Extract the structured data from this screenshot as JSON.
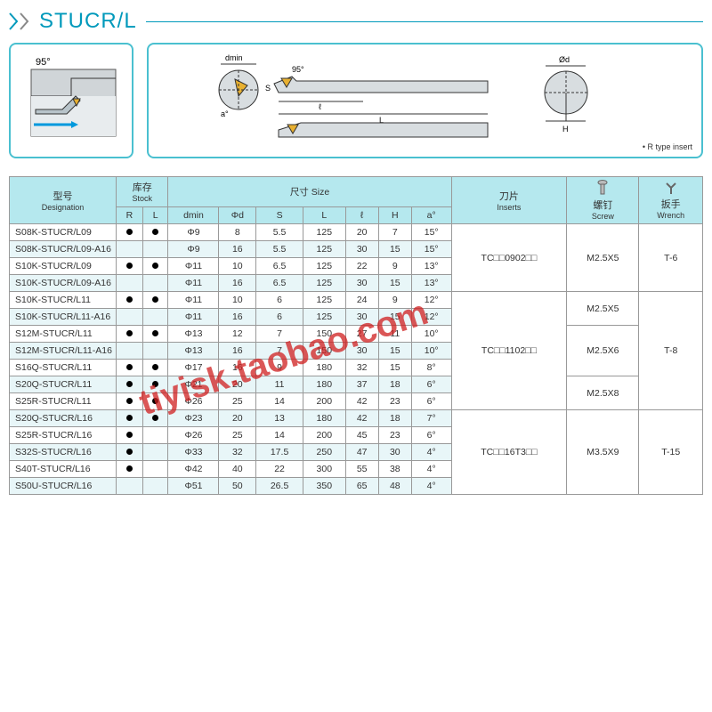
{
  "title": "STUCR/L",
  "note": "• R type insert",
  "angle_label": "95°",
  "diag_labels": {
    "dmin": "dmin",
    "phid": "Ød",
    "H": "H",
    "S": "S",
    "l": "ℓ",
    "L": "L",
    "a": "a°",
    "angle2": "95°"
  },
  "headers": {
    "designation_zh": "型号",
    "designation_en": "Designation",
    "stock_zh": "库存",
    "stock_en": "Stock",
    "R": "R",
    "L": "L",
    "size_zh": "尺寸",
    "size_en": "Size",
    "dmin": "dmin",
    "phid": "Φd",
    "S": "S",
    "Lcol": "L",
    "l": "ℓ",
    "H": "H",
    "a": "a°",
    "inserts_zh": "刀片",
    "inserts_en": "Inserts",
    "screw_zh": "螺钉",
    "screw_en": "Screw",
    "wrench_zh": "扳手",
    "wrench_en": "Wrench"
  },
  "rows": [
    {
      "d": "S08K-STUCR/L09",
      "r": true,
      "l": true,
      "dmin": "Φ9",
      "phid": "8",
      "s": "5.5",
      "L": "125",
      "ll": "20",
      "h": "7",
      "a": "15°"
    },
    {
      "d": "S08K-STUCR/L09-A16",
      "r": false,
      "l": false,
      "dmin": "Φ9",
      "phid": "16",
      "s": "5.5",
      "L": "125",
      "ll": "30",
      "h": "15",
      "a": "15°"
    },
    {
      "d": "S10K-STUCR/L09",
      "r": true,
      "l": true,
      "dmin": "Φ11",
      "phid": "10",
      "s": "6.5",
      "L": "125",
      "ll": "22",
      "h": "9",
      "a": "13°"
    },
    {
      "d": "S10K-STUCR/L09-A16",
      "r": false,
      "l": false,
      "dmin": "Φ11",
      "phid": "16",
      "s": "6.5",
      "L": "125",
      "ll": "30",
      "h": "15",
      "a": "13°"
    },
    {
      "d": "S10K-STUCR/L11",
      "r": true,
      "l": true,
      "dmin": "Φ11",
      "phid": "10",
      "s": "6",
      "L": "125",
      "ll": "24",
      "h": "9",
      "a": "12°"
    },
    {
      "d": "S10K-STUCR/L11-A16",
      "r": false,
      "l": false,
      "dmin": "Φ11",
      "phid": "16",
      "s": "6",
      "L": "125",
      "ll": "30",
      "h": "15",
      "a": "12°"
    },
    {
      "d": "S12M-STUCR/L11",
      "r": true,
      "l": true,
      "dmin": "Φ13",
      "phid": "12",
      "s": "7",
      "L": "150",
      "ll": "27",
      "h": "11",
      "a": "10°"
    },
    {
      "d": "S12M-STUCR/L11-A16",
      "r": false,
      "l": false,
      "dmin": "Φ13",
      "phid": "16",
      "s": "7",
      "L": "150",
      "ll": "30",
      "h": "15",
      "a": "10°"
    },
    {
      "d": "S16Q-STUCR/L11",
      "r": true,
      "l": true,
      "dmin": "Φ17",
      "phid": "16",
      "s": "9",
      "L": "180",
      "ll": "32",
      "h": "15",
      "a": "8°"
    },
    {
      "d": "S20Q-STUCR/L11",
      "r": true,
      "l": true,
      "dmin": "Φ21",
      "phid": "20",
      "s": "11",
      "L": "180",
      "ll": "37",
      "h": "18",
      "a": "6°"
    },
    {
      "d": "S25R-STUCR/L11",
      "r": true,
      "l": true,
      "dmin": "Φ26",
      "phid": "25",
      "s": "14",
      "L": "200",
      "ll": "42",
      "h": "23",
      "a": "6°"
    },
    {
      "d": "S20Q-STUCR/L16",
      "r": true,
      "l": true,
      "dmin": "Φ23",
      "phid": "20",
      "s": "13",
      "L": "180",
      "ll": "42",
      "h": "18",
      "a": "7°"
    },
    {
      "d": "S25R-STUCR/L16",
      "r": true,
      "l": false,
      "dmin": "Φ26",
      "phid": "25",
      "s": "14",
      "L": "200",
      "ll": "45",
      "h": "23",
      "a": "6°"
    },
    {
      "d": "S32S-STUCR/L16",
      "r": true,
      "l": false,
      "dmin": "Φ33",
      "phid": "32",
      "s": "17.5",
      "L": "250",
      "ll": "47",
      "h": "30",
      "a": "4°"
    },
    {
      "d": "S40T-STUCR/L16",
      "r": true,
      "l": false,
      "dmin": "Φ42",
      "phid": "40",
      "s": "22",
      "L": "300",
      "ll": "55",
      "h": "38",
      "a": "4°"
    },
    {
      "d": "S50U-STUCR/L16",
      "r": false,
      "l": false,
      "dmin": "Φ51",
      "phid": "50",
      "s": "26.5",
      "L": "350",
      "ll": "65",
      "h": "48",
      "a": "4°"
    }
  ],
  "inserts": [
    "TC□□0902□□",
    "TC□□1102□□",
    "TC□□16T3□□"
  ],
  "screws": [
    "M2.5X5",
    "M2.5X5",
    "M2.5X6",
    "M2.5X8",
    "M3.5X9"
  ],
  "wrenches": [
    "T-6",
    "T-8",
    "T-15"
  ],
  "watermark": "tiyisk.taobao.com"
}
